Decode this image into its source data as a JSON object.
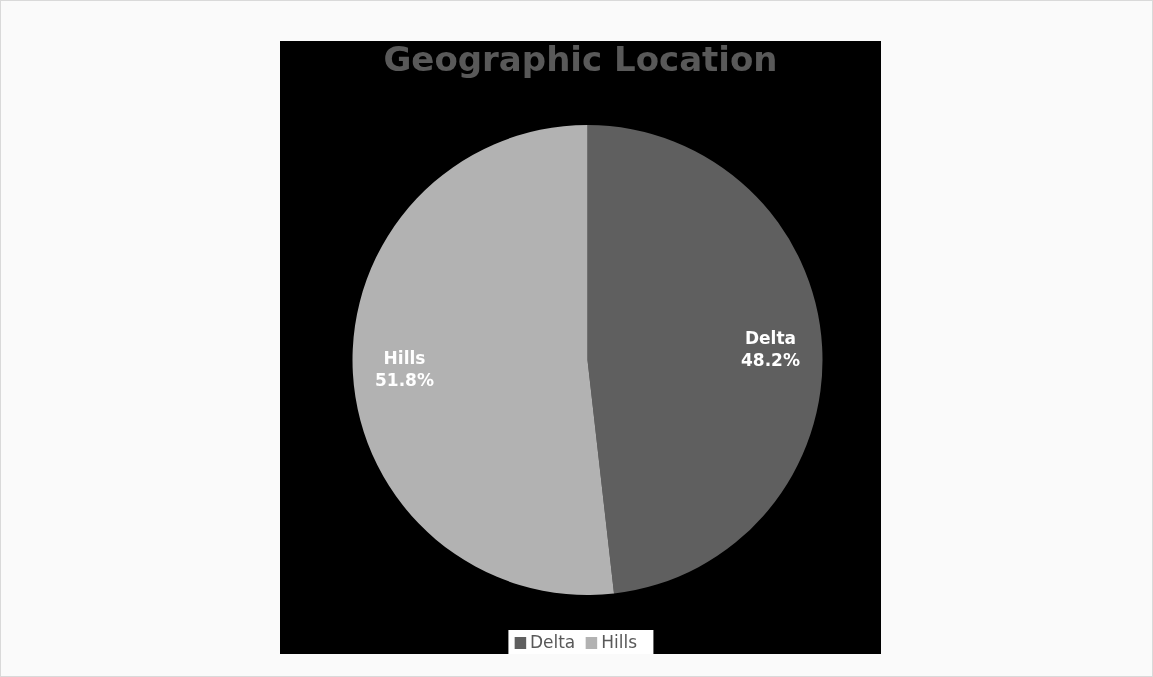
{
  "chart_data": {
    "type": "pie",
    "title": "Geographic Location",
    "categories": [
      "Delta",
      "Hills"
    ],
    "values": [
      48.2,
      51.8
    ],
    "colors": [
      "#5f5f5f",
      "#b2b2b2"
    ],
    "value_labels": [
      "48.2%",
      "51.8%"
    ],
    "legend": "bottom"
  }
}
